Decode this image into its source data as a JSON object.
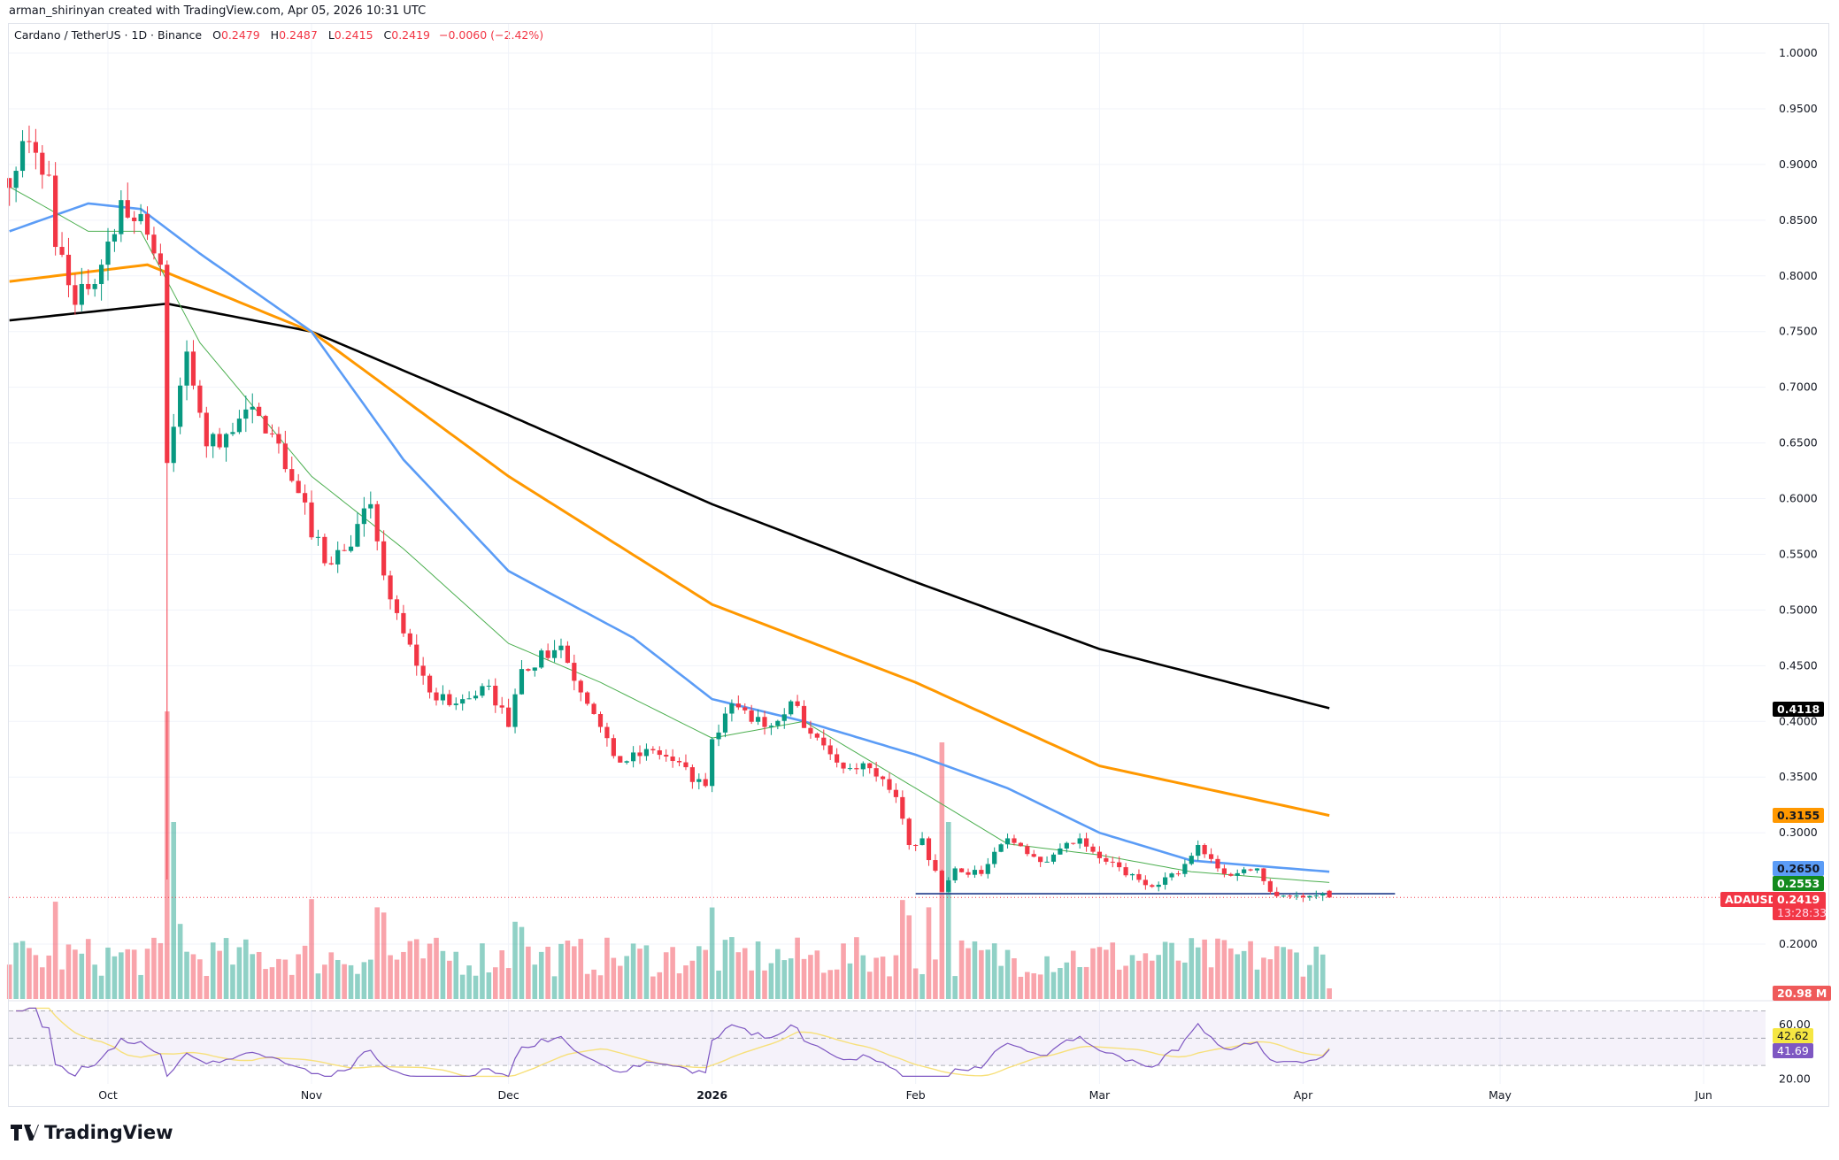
{
  "header": {
    "credit": "arman_shirinyan created with TradingView.com, Apr 05, 2026 10:31 UTC",
    "symbol": "Cardano / TetherUS · 1D · Binance",
    "open_label": "O",
    "open": "0.2479",
    "high_label": "H",
    "high": "0.2487",
    "low_label": "L",
    "low": "0.2415",
    "close_label": "C",
    "close": "0.2419",
    "change": "−0.0060 (−2.42%)"
  },
  "brand": {
    "logo_text": "TradingView",
    "logo_icon": "tradingview-logo-icon"
  },
  "colors": {
    "up": "#089981",
    "down": "#f23645",
    "ma20": "#4caf50",
    "ma50": "#5b9cf6",
    "ma100": "#ff9800",
    "ma200": "#000000",
    "support": "#1e3a8a",
    "rsi": "#7e57c2",
    "rsi_ma": "#f7e07a"
  },
  "labels": {
    "ticker": "ADAUSDT",
    "last_price": "0.2419",
    "countdown": "13:28:33",
    "ma200_value": "0.4118",
    "ma100_value": "0.3155",
    "ma50_value": "0.2650",
    "ma20_value": "0.2553",
    "volume_value": "20.98 M",
    "rsi_value": "41.69",
    "rsi_ma_value": "42.62"
  },
  "chart_data": {
    "type": "candlestick",
    "title": "Cardano / TetherUS · 1D · Binance",
    "y_ticks": [
      "1.0000",
      "0.9500",
      "0.9000",
      "0.8500",
      "0.8000",
      "0.7500",
      "0.7000",
      "0.6500",
      "0.6000",
      "0.5500",
      "0.5000",
      "0.4500",
      "0.4000",
      "0.3500",
      "0.3000",
      "0.2000"
    ],
    "ylim": [
      0.2,
      1.0
    ],
    "x_ticks": [
      {
        "label": "Oct",
        "date": "2025-10-01"
      },
      {
        "label": "Nov",
        "date": "2025-11-01"
      },
      {
        "label": "Dec",
        "date": "2025-12-01"
      },
      {
        "label": "2026",
        "date": "2026-01-01"
      },
      {
        "label": "Feb",
        "date": "2026-02-01"
      },
      {
        "label": "Mar",
        "date": "2026-03-01"
      },
      {
        "label": "Apr",
        "date": "2026-04-01"
      },
      {
        "label": "May",
        "date": "2026-05-01"
      },
      {
        "label": "Jun",
        "date": "2026-06-01"
      }
    ],
    "grid": true,
    "close_path": [
      [
        "2025-09-16",
        0.879
      ],
      [
        "2025-09-18",
        0.921
      ],
      [
        "2025-09-22",
        0.89
      ],
      [
        "2025-09-23",
        0.826
      ],
      [
        "2025-09-26",
        0.774
      ],
      [
        "2025-09-30",
        0.81
      ],
      [
        "2025-10-03",
        0.868
      ],
      [
        "2025-10-07",
        0.837
      ],
      [
        "2025-10-09",
        0.81
      ],
      [
        "2025-10-10",
        0.632
      ],
      [
        "2025-10-13",
        0.732
      ],
      [
        "2025-10-16",
        0.647
      ],
      [
        "2025-10-19",
        0.658
      ],
      [
        "2025-10-22",
        0.68
      ],
      [
        "2025-10-26",
        0.658
      ],
      [
        "2025-10-30",
        0.605
      ],
      [
        "2025-11-03",
        0.542
      ],
      [
        "2025-11-06",
        0.553
      ],
      [
        "2025-11-10",
        0.595
      ],
      [
        "2025-11-12",
        0.531
      ],
      [
        "2025-11-15",
        0.479
      ],
      [
        "2025-11-19",
        0.426
      ],
      [
        "2025-11-23",
        0.416
      ],
      [
        "2025-11-28",
        0.432
      ],
      [
        "2025-12-01",
        0.395
      ],
      [
        "2025-12-03",
        0.447
      ],
      [
        "2025-12-09",
        0.468
      ],
      [
        "2025-12-12",
        0.426
      ],
      [
        "2025-12-15",
        0.395
      ],
      [
        "2025-12-18",
        0.363
      ],
      [
        "2025-12-23",
        0.374
      ],
      [
        "2025-12-31",
        0.342
      ],
      [
        "2026-01-01",
        0.384
      ],
      [
        "2026-01-04",
        0.416
      ],
      [
        "2026-01-09",
        0.395
      ],
      [
        "2026-01-13",
        0.418
      ],
      [
        "2026-01-16",
        0.389
      ],
      [
        "2026-01-20",
        0.363
      ],
      [
        "2026-01-25",
        0.358
      ],
      [
        "2026-01-29",
        0.332
      ],
      [
        "2026-01-31",
        0.289
      ],
      [
        "2026-02-02",
        0.295
      ],
      [
        "2026-02-05",
        0.247
      ],
      [
        "2026-02-07",
        0.268
      ],
      [
        "2026-02-11",
        0.263
      ],
      [
        "2026-02-15",
        0.295
      ],
      [
        "2026-02-21",
        0.274
      ],
      [
        "2026-02-26",
        0.295
      ],
      [
        "2026-03-02",
        0.274
      ],
      [
        "2026-03-08",
        0.253
      ],
      [
        "2026-03-13",
        0.263
      ],
      [
        "2026-03-16",
        0.289
      ],
      [
        "2026-03-20",
        0.263
      ],
      [
        "2026-03-25",
        0.268
      ],
      [
        "2026-03-27",
        0.247
      ],
      [
        "2026-04-01",
        0.242
      ],
      [
        "2026-04-05",
        0.2419
      ]
    ],
    "crash_low": {
      "date": "2025-10-10",
      "low": 0.258
    },
    "moving_averages": [
      {
        "key": "ma200",
        "points": [
          [
            "2025-09-16",
            0.76
          ],
          [
            "2025-10-10",
            0.775
          ],
          [
            "2025-11-01",
            0.75
          ],
          [
            "2025-12-01",
            0.675
          ],
          [
            "2026-01-01",
            0.595
          ],
          [
            "2026-02-01",
            0.525
          ],
          [
            "2026-03-01",
            0.465
          ],
          [
            "2026-04-05",
            0.4118
          ]
        ]
      },
      {
        "key": "ma100",
        "points": [
          [
            "2025-09-16",
            0.795
          ],
          [
            "2025-10-07",
            0.81
          ],
          [
            "2025-11-01",
            0.75
          ],
          [
            "2025-12-01",
            0.62
          ],
          [
            "2026-01-01",
            0.505
          ],
          [
            "2026-02-01",
            0.435
          ],
          [
            "2026-03-01",
            0.36
          ],
          [
            "2026-04-05",
            0.3155
          ]
        ]
      },
      {
        "key": "ma50",
        "points": [
          [
            "2025-09-16",
            0.84
          ],
          [
            "2025-09-28",
            0.865
          ],
          [
            "2025-10-06",
            0.86
          ],
          [
            "2025-10-15",
            0.82
          ],
          [
            "2025-11-01",
            0.75
          ],
          [
            "2025-11-15",
            0.635
          ],
          [
            "2025-12-01",
            0.535
          ],
          [
            "2025-12-20",
            0.475
          ],
          [
            "2026-01-01",
            0.42
          ],
          [
            "2026-01-15",
            0.4
          ],
          [
            "2026-02-01",
            0.37
          ],
          [
            "2026-02-15",
            0.34
          ],
          [
            "2026-03-01",
            0.3
          ],
          [
            "2026-03-15",
            0.275
          ],
          [
            "2026-04-05",
            0.265
          ]
        ]
      },
      {
        "key": "ma20",
        "points": [
          [
            "2025-09-16",
            0.88
          ],
          [
            "2025-09-28",
            0.84
          ],
          [
            "2025-10-06",
            0.84
          ],
          [
            "2025-10-15",
            0.74
          ],
          [
            "2025-11-01",
            0.62
          ],
          [
            "2025-11-15",
            0.555
          ],
          [
            "2025-12-01",
            0.47
          ],
          [
            "2025-12-15",
            0.435
          ],
          [
            "2026-01-01",
            0.385
          ],
          [
            "2026-01-15",
            0.4
          ],
          [
            "2026-02-01",
            0.34
          ],
          [
            "2026-02-15",
            0.29
          ],
          [
            "2026-03-01",
            0.28
          ],
          [
            "2026-03-15",
            0.265
          ],
          [
            "2026-04-05",
            0.2553
          ]
        ]
      }
    ],
    "support_line": {
      "price": 0.2453,
      "from": "2026-02-01",
      "to": "2026-04-15"
    },
    "rsi": {
      "ticks": [
        "60.00",
        "20.00"
      ],
      "band": [
        30,
        70
      ],
      "last": 41.69,
      "ma_last": 42.62
    },
    "volume": {
      "last": "20.98 M"
    }
  }
}
